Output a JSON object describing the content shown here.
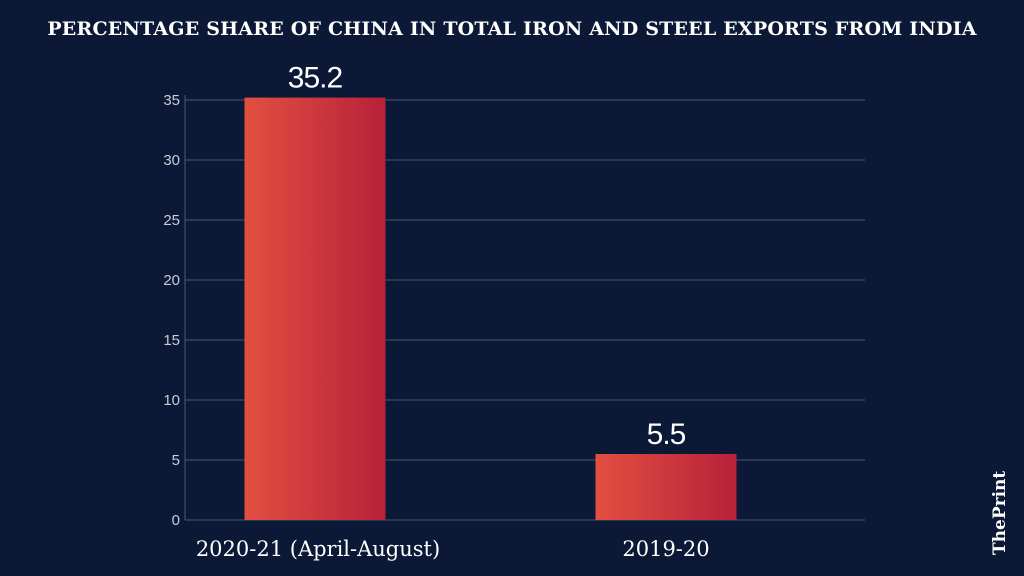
{
  "chart_data": {
    "type": "bar",
    "title": "PERCENTAGE SHARE OF CHINA IN TOTAL IRON AND STEEL EXPORTS FROM INDIA",
    "categories": [
      "2020-21 (April-August)",
      "2019-20"
    ],
    "values": [
      35.2,
      5.5
    ],
    "data_labels": [
      "35.2",
      "5.5"
    ],
    "xlabel": "",
    "ylabel": "",
    "ylim": [
      0,
      35
    ],
    "yticks": [
      0,
      5,
      10,
      15,
      20,
      25,
      30,
      35
    ],
    "grid": true,
    "bar_gradient": [
      "#e24f40",
      "#b8213a"
    ],
    "background": "#0b1936"
  },
  "logo": "ThePrint"
}
